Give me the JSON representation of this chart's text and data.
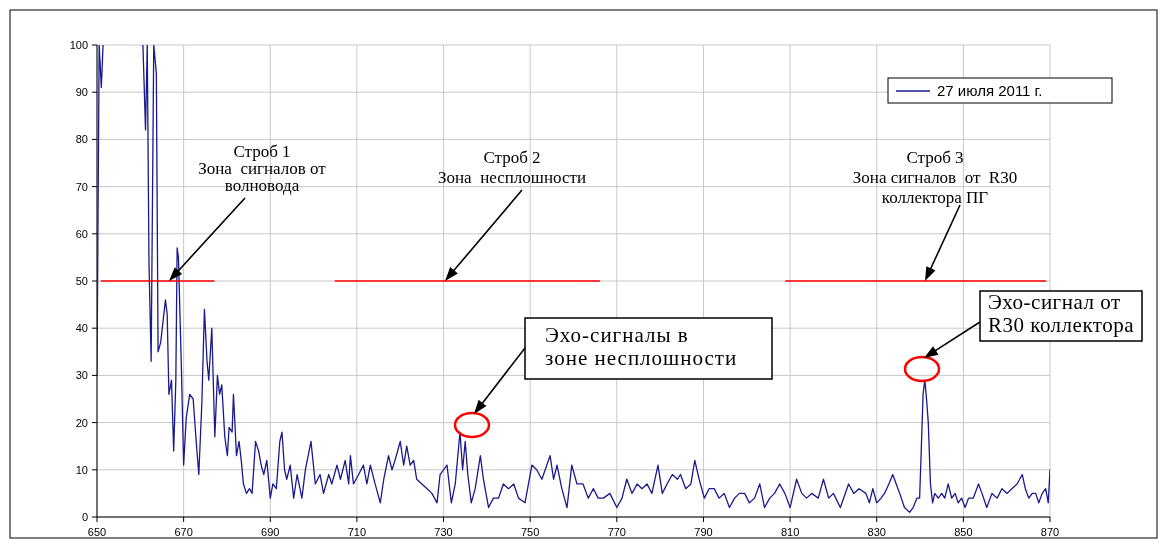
{
  "chart_data": {
    "type": "line",
    "xlim": [
      650,
      870
    ],
    "ylim": [
      0,
      100
    ],
    "xticks": [
      650,
      670,
      690,
      710,
      730,
      750,
      770,
      790,
      810,
      830,
      850,
      870
    ],
    "yticks": [
      0,
      10,
      20,
      30,
      40,
      50,
      60,
      70,
      80,
      90,
      100
    ],
    "grid": true,
    "legend": "top right",
    "series": [
      {
        "name": "27 июля 2011 г.",
        "color": "#1a1a8c",
        "x": [
          650,
          650.5,
          651,
          651.4,
          655,
          660.6,
          661.2,
          661.6,
          662,
          662.5,
          663.1,
          663.7,
          664.1,
          664.7,
          665.8,
          666.2,
          666.6,
          667.2,
          667.7,
          668.2,
          668.5,
          668.8,
          669.5,
          670,
          670.6,
          671.4,
          672.2,
          672.9,
          673.5,
          674.2,
          674.8,
          675.4,
          675.8,
          676.5,
          677.2,
          677.8,
          678.3,
          678.8,
          679.5,
          680.1,
          680.5,
          681.2,
          681.5,
          682.2,
          682.8,
          683.3,
          683.8,
          684.5,
          685.2,
          685.8,
          686.6,
          687.3,
          687.9,
          688.5,
          689.2,
          690,
          690.6,
          691.4,
          692.2,
          692.7,
          693.3,
          693.8,
          694.6,
          695.4,
          696.2,
          697.3,
          698.1,
          699.4,
          700.4,
          701.5,
          702.3,
          703.5,
          704.2,
          705.4,
          706.2,
          707.3,
          708.1,
          708.5,
          709.2,
          710.4,
          711.5,
          712.3,
          713.1,
          714.2,
          715.4,
          716.2,
          717.3,
          718.1,
          718.8,
          720,
          720.8,
          721.5,
          722.3,
          723.1,
          723.8,
          725,
          726.2,
          727.3,
          728.5,
          729.2,
          730,
          730.8,
          731.8,
          732.7,
          733.8,
          734.4,
          735,
          735.6,
          736.4,
          737.3,
          738.5,
          739.2,
          740.4,
          741.5,
          742.7,
          743.8,
          745,
          746.2,
          747.3,
          748.8,
          750.4,
          751.5,
          752.7,
          754.6,
          755.4,
          756.2,
          757.3,
          758.5,
          759.6,
          760.8,
          762.2,
          763.4,
          764.6,
          765.7,
          766.9,
          768.4,
          770,
          771.2,
          772.3,
          773.5,
          774.7,
          775.8,
          777,
          778.1,
          779.5,
          780.5,
          781.6,
          782.8,
          784,
          784.7,
          785.9,
          787.1,
          788,
          789,
          790.2,
          791.3,
          792.5,
          793.6,
          794.8,
          796,
          797.2,
          798.3,
          799.5,
          800.6,
          801.8,
          803,
          804.1,
          805.3,
          806.4,
          807.6,
          808.8,
          810,
          811.5,
          812.7,
          813.8,
          815,
          816.5,
          817.7,
          818.9,
          820,
          821.6,
          823.5,
          824.7,
          825.9,
          827.5,
          828.3,
          829.1,
          830,
          831,
          831.8,
          832.8,
          833.7,
          834.5,
          835.3,
          836.4,
          837.6,
          838.4,
          839.3,
          839.9,
          840.2,
          840.7,
          841.1,
          841.5,
          841.9,
          842.4,
          842.9,
          843.4,
          844.2,
          845,
          845.7,
          846.5,
          847.3,
          848.1,
          848.8,
          849.6,
          850.4,
          851.2,
          852.3,
          853.5,
          854.3,
          855.4,
          856.6,
          857.8,
          858.9,
          860.1,
          861.2,
          862.4,
          863.6,
          864.3,
          865.1,
          865.9,
          866.7,
          867.4,
          868.2,
          869,
          869.6,
          870
        ],
        "values": [
          30,
          100,
          91,
          100,
          null,
          100,
          82,
          100,
          54,
          33,
          100,
          94,
          35,
          37,
          46,
          43,
          26,
          29,
          14,
          29,
          57,
          55,
          31,
          11,
          21,
          26,
          25,
          16,
          9,
          24,
          44,
          33,
          29,
          40,
          17,
          30,
          26,
          28,
          17,
          13,
          19,
          18,
          26,
          13,
          16,
          12,
          7,
          5,
          6,
          5,
          16,
          14,
          11,
          9,
          12,
          4,
          7,
          6,
          16,
          18,
          10,
          8,
          11,
          4,
          9,
          4,
          10,
          16,
          7,
          9,
          5,
          9,
          7,
          11,
          8,
          12,
          7,
          13,
          7,
          9,
          11,
          7,
          11,
          7,
          3,
          8,
          13,
          10,
          12,
          16,
          11,
          15,
          11,
          12,
          8,
          7,
          6,
          5,
          3,
          9,
          10,
          11,
          3,
          7,
          18,
          10,
          16,
          9,
          3,
          6,
          13,
          8,
          2,
          4,
          4,
          7,
          6,
          7,
          4,
          3,
          11,
          10,
          8,
          13,
          8,
          11,
          6,
          2,
          11,
          7,
          7,
          4,
          6,
          4,
          4,
          5,
          2,
          4,
          8,
          5,
          7,
          6,
          7,
          5,
          11,
          5,
          7,
          9,
          8,
          9,
          6,
          7,
          12,
          8,
          4,
          6,
          6,
          4,
          5,
          2,
          4,
          5,
          5,
          3,
          4,
          7,
          2,
          4,
          5,
          7,
          5,
          2,
          8,
          5,
          4,
          5,
          4,
          8,
          4,
          5,
          2,
          7,
          5,
          6,
          5,
          3,
          6,
          3,
          4,
          5,
          7,
          9,
          7,
          5,
          2,
          1,
          2,
          4,
          4,
          12,
          26,
          29,
          25,
          20,
          7,
          3,
          5,
          4,
          5,
          4,
          7,
          4,
          5,
          3,
          4,
          2,
          4,
          4,
          7,
          5,
          2,
          5,
          4,
          6,
          5,
          6,
          7,
          9,
          6,
          4,
          5,
          5,
          3,
          5,
          6,
          3,
          10
        ]
      },
      {
        "type": "line",
        "color": "#ff0000",
        "x": [
          651,
          677
        ],
        "values": [
          50,
          50
        ]
      },
      {
        "type": "line",
        "color": "#ff0000",
        "x": [
          705,
          766
        ],
        "values": [
          50,
          50
        ]
      },
      {
        "type": "line",
        "color": "#ff0000",
        "x": [
          809,
          869
        ],
        "values": [
          50,
          50
        ]
      }
    ],
    "annotations": [
      "Строб 1\nЗона  сигналов от\nволновода",
      "Строб 2\nЗона  несплошности",
      "Строб 3\nЗона сигналов  от  R30\nколлектора ПГ",
      "Эхо-сигналы в\nзоне несплошности",
      "Эхо-сигнал от\nR30 коллектора"
    ]
  }
}
